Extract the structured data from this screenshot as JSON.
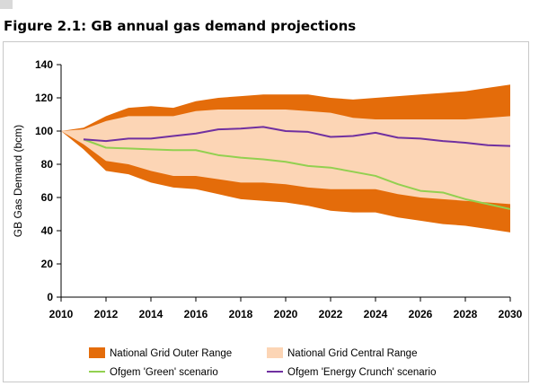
{
  "figure_title": "Figure 2.1: GB annual gas demand projections",
  "chart_data": {
    "type": "area",
    "title": "Figure 2.1: GB annual gas demand projections",
    "xlabel": "",
    "ylabel": "GB Gas Demand (bcm)",
    "xlim": [
      2010,
      2030
    ],
    "ylim": [
      0,
      140
    ],
    "x_ticks": [
      2010,
      2012,
      2014,
      2016,
      2018,
      2020,
      2022,
      2024,
      2026,
      2028,
      2030
    ],
    "y_ticks": [
      0,
      20,
      40,
      60,
      80,
      100,
      120,
      140
    ],
    "grid": false,
    "legend": "bottom",
    "x": [
      2010,
      2011,
      2012,
      2013,
      2014,
      2015,
      2016,
      2017,
      2018,
      2019,
      2020,
      2021,
      2022,
      2023,
      2024,
      2025,
      2026,
      2027,
      2028,
      2029,
      2030
    ],
    "series": [
      {
        "name": "National Grid Outer Range",
        "kind": "band",
        "color": "#e46c0a",
        "upper": [
          100,
          102,
          109,
          114,
          115,
          114,
          118,
          120,
          121,
          122,
          122,
          122,
          120,
          119,
          120,
          121,
          122,
          123,
          124,
          126,
          128
        ],
        "lower": [
          100,
          89,
          76,
          74,
          69,
          66,
          65,
          62,
          59,
          58,
          57,
          55,
          52,
          51,
          51,
          48,
          46,
          44,
          43,
          41,
          39
        ]
      },
      {
        "name": "National Grid Central Range",
        "kind": "band",
        "color": "#fcd5b5",
        "upper": [
          100,
          101,
          106,
          109,
          109,
          109,
          112,
          113,
          113,
          113,
          113,
          112,
          111,
          108,
          107,
          107,
          107,
          107,
          107,
          108,
          109
        ],
        "lower": [
          100,
          92,
          82,
          80,
          76,
          73,
          73,
          71,
          69,
          69,
          68,
          66,
          65,
          65,
          65,
          62,
          60,
          59,
          58,
          57,
          56
        ]
      },
      {
        "name": "Ofgem 'Green' scenario",
        "kind": "line",
        "color": "#92d050",
        "x": [
          2011,
          2012,
          2013,
          2014,
          2015,
          2016,
          2017,
          2018,
          2019,
          2020,
          2021,
          2022,
          2023,
          2024,
          2025,
          2026,
          2027,
          2028,
          2029,
          2030
        ],
        "values": [
          95,
          90,
          89.5,
          89,
          88.5,
          88.5,
          85.5,
          84,
          83,
          81.5,
          79,
          78,
          75.5,
          73,
          68,
          64,
          63,
          59,
          56,
          53
        ]
      },
      {
        "name": "Ofgem 'Energy Crunch' scenario",
        "kind": "line",
        "color": "#7030a0",
        "x": [
          2011,
          2012,
          2013,
          2014,
          2015,
          2016,
          2017,
          2018,
          2019,
          2020,
          2021,
          2022,
          2023,
          2024,
          2025,
          2026,
          2027,
          2028,
          2029,
          2030
        ],
        "values": [
          95,
          94,
          95.5,
          95.5,
          97,
          98.5,
          101,
          101.5,
          102.5,
          100,
          99.5,
          96.5,
          97,
          99,
          96,
          95.5,
          94,
          93,
          91.5,
          91
        ]
      }
    ]
  }
}
